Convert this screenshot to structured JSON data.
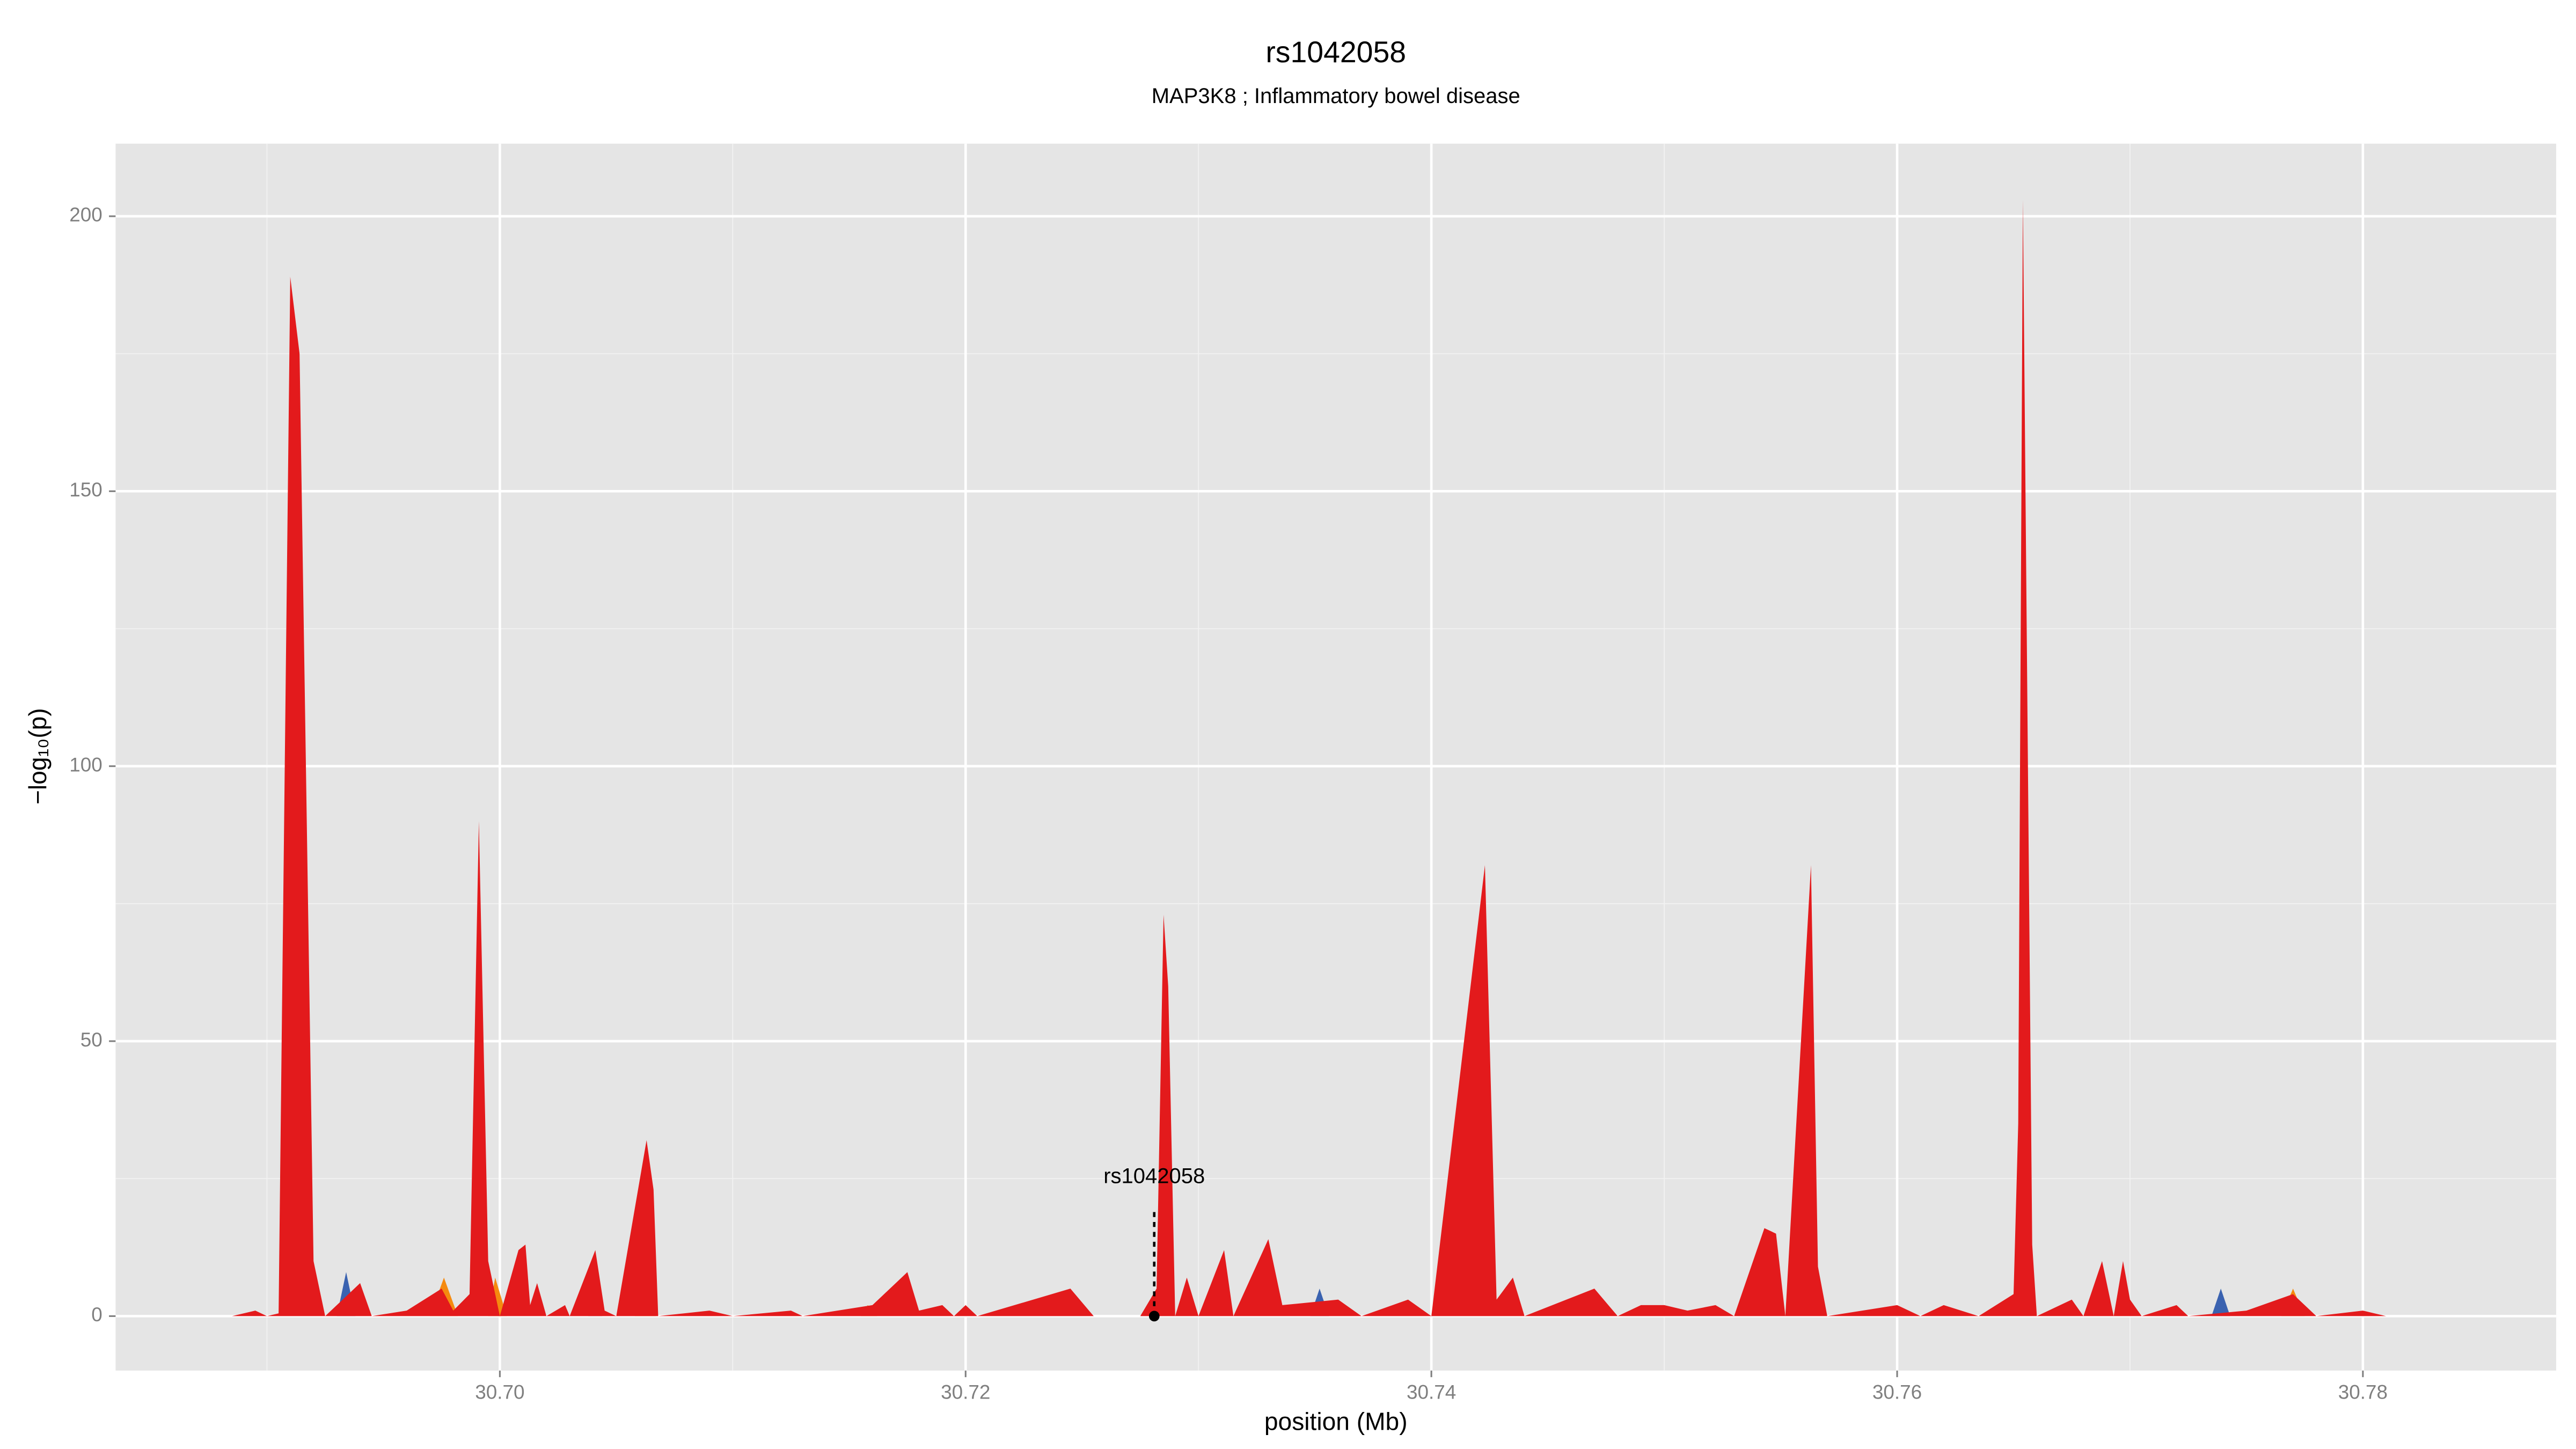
{
  "chart_data": {
    "type": "area",
    "title": "rs1042058",
    "subtitle": "MAP3K8 ; Inflammatory bowel disease",
    "x_label": "position (Mb)",
    "y_label": "−log₁₀(p)",
    "xlim": [
      30.6835,
      30.7883
    ],
    "ylim": [
      -9.9,
      213.2
    ],
    "xticks": [
      {
        "value": 30.7,
        "label": "30.70"
      },
      30.72,
      30.74,
      30.76,
      30.78
    ],
    "yticks": [
      0,
      50,
      100,
      150,
      200
    ],
    "x_minor_ticks": [
      30.69,
      30.71,
      30.73,
      30.75,
      30.77
    ],
    "y_minor_ticks": [
      25,
      75,
      125,
      175
    ],
    "grid": true,
    "series": [
      {
        "color": "#3a62b0",
        "x": [
          30.693,
          30.6934,
          30.6938,
          30.7038,
          30.7041,
          30.7044,
          30.7348,
          30.7352,
          30.7356,
          30.7735,
          30.7739,
          30.7743
        ],
        "values": [
          0,
          8,
          0,
          0,
          11,
          0,
          0,
          5,
          0,
          0,
          5,
          0
        ]
      },
      {
        "color": "#f58a0f",
        "x": [
          30.697,
          30.6976,
          30.6982,
          30.6995,
          30.6998,
          30.7003,
          30.7058,
          30.7063,
          30.7067,
          30.7155,
          30.7158,
          30.7162,
          30.7765,
          30.777,
          30.7775
        ],
        "values": [
          0,
          7,
          0,
          0,
          7,
          0,
          0,
          30,
          0,
          0,
          2,
          0,
          0,
          5,
          0
        ]
      },
      {
        "color": "#e31a1c",
        "x": [
          30.6885,
          30.6895,
          30.69,
          30.6905,
          30.691,
          30.6914,
          30.692,
          30.6925,
          30.694,
          30.6945,
          30.696,
          30.6975,
          30.698,
          30.6987,
          30.6991,
          30.6995,
          30.7,
          30.7008,
          30.7011,
          30.7013,
          30.7016,
          30.702,
          30.7028,
          30.703,
          30.7041,
          30.7045,
          30.705,
          30.7063,
          30.7066,
          30.7068,
          30.709,
          30.71,
          30.7125,
          30.713,
          30.716,
          30.7175,
          30.718,
          30.719,
          30.7195,
          30.72,
          30.7205,
          30.7245,
          30.7255,
          30.7275,
          30.7282,
          30.7285,
          30.7287,
          30.729,
          30.7295,
          30.73,
          30.7311,
          30.7315,
          30.733,
          30.7336,
          30.736,
          30.737,
          30.739,
          30.74,
          30.7423,
          30.7428,
          30.7435,
          30.744,
          30.747,
          30.748,
          30.749,
          30.75,
          30.751,
          30.7522,
          30.753,
          30.7543,
          30.7548,
          30.7552,
          30.7563,
          30.7566,
          30.757,
          30.76,
          30.761,
          30.762,
          30.7635,
          30.765,
          30.7652,
          30.7654,
          30.7658,
          30.766,
          30.7675,
          30.768,
          30.7688,
          30.7693,
          30.7697,
          30.77,
          30.7705,
          30.772,
          30.7725,
          30.775,
          30.777,
          30.778,
          30.78,
          30.781,
          30.7835
        ],
        "values": [
          0,
          1,
          0,
          0.5,
          189,
          175,
          10,
          0,
          6,
          0,
          1,
          5,
          1,
          4,
          90,
          10,
          0,
          12,
          13,
          2,
          6,
          0,
          2,
          0,
          12,
          1,
          0,
          32,
          23,
          0,
          1,
          0,
          1,
          0,
          2,
          8,
          1,
          2,
          0,
          2,
          0,
          5,
          0,
          0,
          5,
          73,
          60,
          0,
          7,
          0,
          12,
          0,
          14,
          2,
          3,
          0,
          3,
          0,
          82,
          3,
          7,
          0,
          5,
          0,
          2,
          2,
          1,
          2,
          0,
          16,
          15,
          0,
          82,
          9,
          0,
          2,
          0,
          2,
          0,
          4,
          35,
          203,
          13,
          0,
          3,
          0,
          10,
          0,
          10,
          3,
          0,
          2,
          0,
          1,
          4,
          0,
          1,
          0,
          0
        ]
      }
    ],
    "annotation": {
      "text": "rs1042058",
      "x": 30.7281,
      "y": 0
    }
  }
}
